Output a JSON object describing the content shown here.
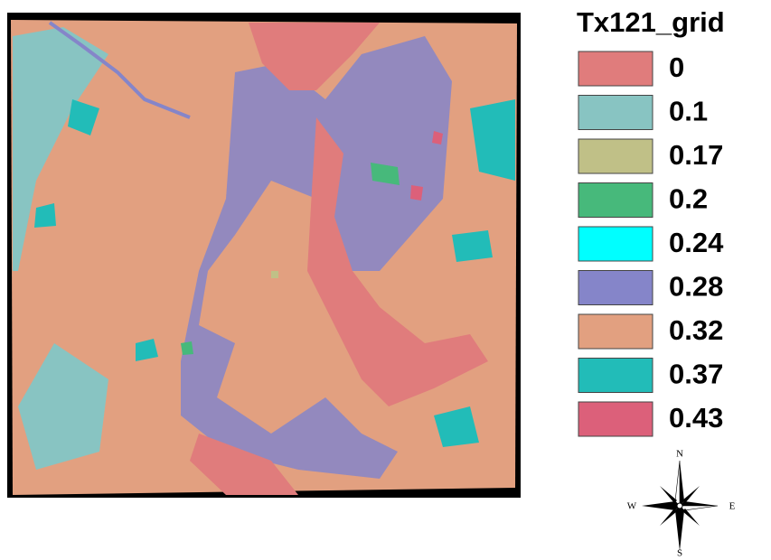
{
  "legend": {
    "title": "Tx121_grid",
    "items": [
      {
        "label": "0",
        "color": "#e07c7c"
      },
      {
        "label": "0.1",
        "color": "#88c4c2"
      },
      {
        "label": "0.17",
        "color": "#c0c087"
      },
      {
        "label": "0.2",
        "color": "#47b97b"
      },
      {
        "label": "0.24",
        "color": "#00ffff"
      },
      {
        "label": "0.28",
        "color": "#8585c9"
      },
      {
        "label": "0.32",
        "color": "#e2a080"
      },
      {
        "label": "0.37",
        "color": "#22bcb8"
      },
      {
        "label": "0.43",
        "color": "#dc607a"
      }
    ]
  },
  "compass": {
    "north": "N",
    "south": "S",
    "east": "E",
    "west": "W"
  }
}
